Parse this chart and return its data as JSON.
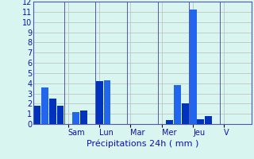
{
  "xlabel": "Précipitations 24h ( mm )",
  "background_color": "#d8f5f0",
  "bar_color_dark": "#0033bb",
  "bar_color_light": "#2266ee",
  "grid_color": "#bbbbbb",
  "spine_color": "#5555aa",
  "ylim": [
    0,
    12
  ],
  "yticks": [
    0,
    1,
    2,
    3,
    4,
    5,
    6,
    7,
    8,
    9,
    10,
    11,
    12
  ],
  "day_labels": [
    "Sam",
    "Lun",
    "Mar",
    "Mer",
    "Jeu",
    "V"
  ],
  "num_bars": 28,
  "bar_values": [
    1.8,
    3.6,
    2.5,
    1.8,
    0.0,
    1.2,
    1.3,
    0.0,
    4.2,
    4.3,
    0.0,
    0.0,
    0.0,
    0.0,
    0.0,
    0.0,
    0.0,
    0.4,
    3.8,
    2.0,
    11.2,
    0.5,
    0.8,
    0.0,
    0.0,
    0.0,
    0.0,
    0.0
  ],
  "bar_colors": [
    "#0033bb",
    "#2266ee",
    "#0033bb",
    "#0033bb",
    "#0033bb",
    "#2266ee",
    "#0033bb",
    "#0033bb",
    "#0033bb",
    "#2266ee",
    "#0033bb",
    "#0033bb",
    "#0033bb",
    "#0033bb",
    "#0033bb",
    "#0033bb",
    "#0033bb",
    "#0033bb",
    "#2266ee",
    "#0033bb",
    "#2266ee",
    "#0033bb",
    "#0033bb",
    "#0033bb",
    "#0033bb",
    "#0033bb",
    "#0033bb",
    "#0033bb"
  ],
  "day_tick_positions": [
    4,
    8,
    12,
    16,
    20,
    24
  ],
  "tick_label_color": "#1111aa",
  "xlabel_color": "#1111aa",
  "xlabel_fontsize": 8,
  "tick_fontsize": 7,
  "ytick_fontsize": 7
}
